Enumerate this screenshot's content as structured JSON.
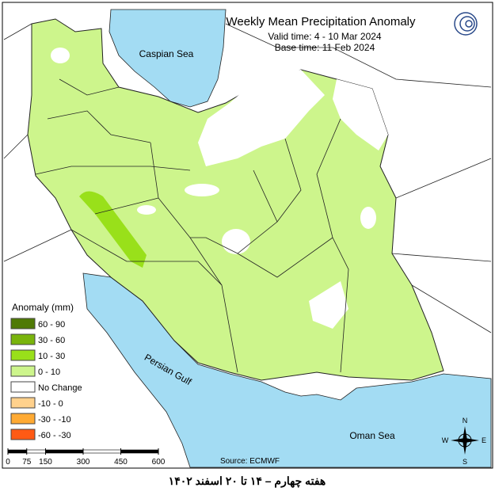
{
  "header": {
    "title": "Weekly Mean Precipitation Anomaly",
    "valid_time": "Valid time:  4 - 10 Mar 2024",
    "base_time": "Base time: 11 Feb 2024"
  },
  "water_labels": {
    "caspian": "Caspian Sea",
    "gulf": "Persian Gulf",
    "oman": "Oman Sea"
  },
  "legend": {
    "title": "Anomaly (mm)",
    "items": [
      {
        "label": "60 - 90",
        "color": "#4f7a05"
      },
      {
        "label": "30 - 60",
        "color": "#79b40c"
      },
      {
        "label": "10 - 30",
        "color": "#99e01a"
      },
      {
        "label": "0 - 10",
        "color": "#cdf58c"
      },
      {
        "label": "No Change",
        "color": "#ffffff"
      },
      {
        "label": "-10 - 0",
        "color": "#ffd18c"
      },
      {
        "label": "-30 - -10",
        "color": "#ffaa33"
      },
      {
        "label": "-60 - -30",
        "color": "#ff5a14"
      }
    ]
  },
  "scale_bar": {
    "ticks": [
      0,
      75,
      150,
      300,
      450,
      600
    ]
  },
  "source": "Source: ECMWF",
  "compass": {
    "n": "N",
    "e": "E",
    "s": "S",
    "w": "W"
  },
  "footer": "هفته چهارم – ۱۴ تا ۲۰ اسفند ۱۴۰۲"
}
